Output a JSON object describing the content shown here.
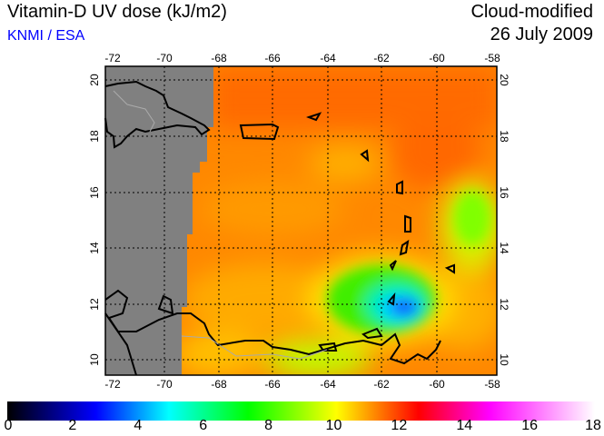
{
  "header": {
    "title": "Vitamin-D UV dose (kJ/m2)",
    "credit": "KNMI / ESA",
    "mode": "Cloud-modified",
    "date": "26 July 2009"
  },
  "map": {
    "lon_ticks": [
      "-72",
      "-70",
      "-68",
      "-66",
      "-64",
      "-62",
      "-60",
      "-58"
    ],
    "lat_ticks": [
      "20",
      "18",
      "16",
      "14",
      "12",
      "10"
    ],
    "no_data_color": "#808080"
  },
  "colorbar": {
    "ticks": [
      "0",
      "2",
      "4",
      "6",
      "8",
      "10",
      "12",
      "14",
      "16",
      "18"
    ],
    "colors": [
      "#000000",
      "#0000ff",
      "#00ffff",
      "#00ff00",
      "#ffff00",
      "#ff0000",
      "#ff00ff",
      "#ffffff"
    ]
  }
}
